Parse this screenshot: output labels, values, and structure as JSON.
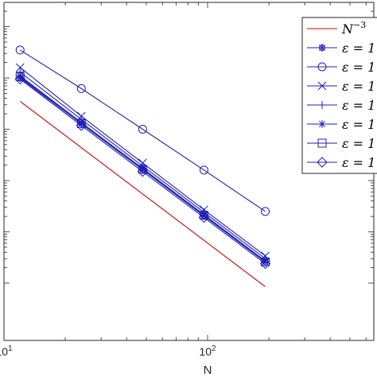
{
  "chart_data": {
    "type": "line",
    "xscale": "log",
    "yscale": "log",
    "xlabel": "N",
    "ylabel": "",
    "title": "",
    "x_tick_labels": [
      {
        "base": "10",
        "exp": "1",
        "value": 10
      },
      {
        "base": "10",
        "exp": "2",
        "value": 100
      }
    ],
    "xlim": [
      10,
      540
    ],
    "grid": false,
    "legend_position": "top-right",
    "x": [
      12,
      24,
      48,
      96,
      192
    ],
    "series": [
      {
        "name": "N^{-3}",
        "label_main": "N",
        "label_exp": "−3",
        "color": "#cc0000",
        "marker": "none",
        "x": [
          12,
          192
        ],
        "y": [
          0.35,
          8.54e-05
        ]
      },
      {
        "name": "ε = 1",
        "label_main": "ε = 1",
        "color": "#1f1fb4",
        "marker": "star-circle",
        "y": [
          1.0,
          0.128,
          0.0163,
          0.00205,
          0.000258
        ]
      },
      {
        "name": "ε = 1",
        "label_main": "ε = 1",
        "color": "#1f1fb4",
        "marker": "circle",
        "y": [
          3.5,
          0.62,
          0.1,
          0.016,
          0.0025
        ]
      },
      {
        "name": "ε = 1",
        "label_main": "ε = 1",
        "color": "#1f1fb4",
        "marker": "x",
        "y": [
          1.6,
          0.18,
          0.022,
          0.0027,
          0.00034
        ]
      },
      {
        "name": "ε = 1",
        "label_main": "ε = 1",
        "color": "#1f1fb4",
        "marker": "plus",
        "y": [
          1.3,
          0.155,
          0.0192,
          0.0024,
          0.0003
        ]
      },
      {
        "name": "ε = 1",
        "label_main": "ε = 1",
        "color": "#1f1fb4",
        "marker": "asterisk",
        "y": [
          1.1,
          0.135,
          0.0172,
          0.00216,
          0.00027
        ]
      },
      {
        "name": "ε = 1",
        "label_main": "ε = 1",
        "color": "#1f1fb4",
        "marker": "square",
        "y": [
          1.05,
          0.128,
          0.0165,
          0.0021,
          0.00026
        ]
      },
      {
        "name": "ε = 1",
        "label_main": "ε = 1",
        "color": "#1f1fb4",
        "marker": "diamond",
        "y": [
          0.95,
          0.118,
          0.015,
          0.0019,
          0.00024
        ]
      }
    ]
  }
}
